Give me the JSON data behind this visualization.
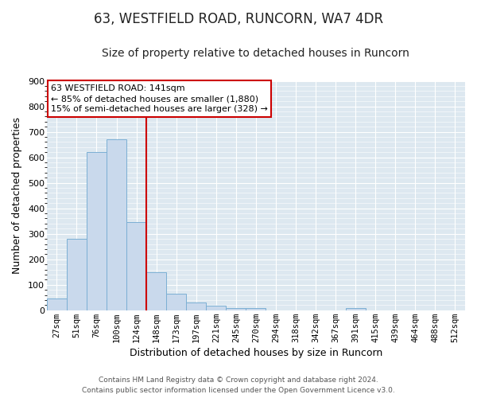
{
  "title": "63, WESTFIELD ROAD, RUNCORN, WA7 4DR",
  "subtitle": "Size of property relative to detached houses in Runcorn",
  "xlabel": "Distribution of detached houses by size in Runcorn",
  "ylabel": "Number of detached properties",
  "bar_labels": [
    "27sqm",
    "51sqm",
    "76sqm",
    "100sqm",
    "124sqm",
    "148sqm",
    "173sqm",
    "197sqm",
    "221sqm",
    "245sqm",
    "270sqm",
    "294sqm",
    "318sqm",
    "342sqm",
    "367sqm",
    "391sqm",
    "415sqm",
    "439sqm",
    "464sqm",
    "488sqm",
    "512sqm"
  ],
  "bar_values": [
    45,
    280,
    622,
    670,
    345,
    148,
    65,
    30,
    18,
    10,
    10,
    0,
    0,
    0,
    0,
    8,
    0,
    0,
    0,
    0,
    0
  ],
  "bar_color": "#c9d9ec",
  "bar_edge_color": "#7bafd4",
  "vline_color": "#cc0000",
  "annotation_text": "63 WESTFIELD ROAD: 141sqm\n← 85% of detached houses are smaller (1,880)\n15% of semi-detached houses are larger (328) →",
  "annotation_box_color": "#ffffff",
  "annotation_box_edge": "#cc0000",
  "ylim": [
    0,
    900
  ],
  "yticks": [
    0,
    100,
    200,
    300,
    400,
    500,
    600,
    700,
    800,
    900
  ],
  "plot_bg_color": "#dde8f0",
  "fig_bg_color": "#ffffff",
  "grid_color": "#ffffff",
  "footer_line1": "Contains HM Land Registry data © Crown copyright and database right 2024.",
  "footer_line2": "Contains public sector information licensed under the Open Government Licence v3.0.",
  "title_fontsize": 12,
  "subtitle_fontsize": 10,
  "vline_x_index": 4.5
}
